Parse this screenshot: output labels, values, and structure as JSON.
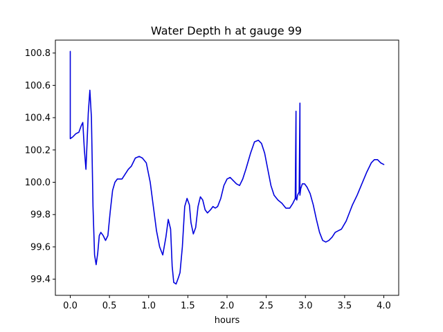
{
  "chart_data": {
    "type": "line",
    "title": "Water Depth h at gauge 99",
    "xlabel": "hours",
    "ylabel": "",
    "xlim": [
      -0.19,
      4.19
    ],
    "ylim": [
      99.3,
      100.88
    ],
    "xticks": [
      0.0,
      0.5,
      1.0,
      1.5,
      2.0,
      2.5,
      3.0,
      3.5,
      4.0
    ],
    "xtick_labels": [
      "0.0",
      "0.5",
      "1.0",
      "1.5",
      "2.0",
      "2.5",
      "3.0",
      "3.5",
      "4.0"
    ],
    "yticks": [
      99.4,
      99.6,
      99.8,
      100.0,
      100.2,
      100.4,
      100.6,
      100.8
    ],
    "ytick_labels": [
      "99.4",
      "99.6",
      "99.8",
      "100.0",
      "100.2",
      "100.4",
      "100.6",
      "100.8"
    ],
    "grid": false,
    "series": [
      {
        "color": "#0000dd",
        "x": [
          0.0,
          0.0,
          0.0,
          0.03,
          0.07,
          0.11,
          0.14,
          0.16,
          0.18,
          0.2,
          0.23,
          0.25,
          0.27,
          0.29,
          0.31,
          0.33,
          0.35,
          0.37,
          0.39,
          0.42,
          0.45,
          0.48,
          0.51,
          0.54,
          0.57,
          0.6,
          0.63,
          0.66,
          0.7,
          0.74,
          0.78,
          0.83,
          0.88,
          0.92,
          0.97,
          1.02,
          1.06,
          1.1,
          1.14,
          1.18,
          1.22,
          1.25,
          1.28,
          1.3,
          1.32,
          1.35,
          1.38,
          1.4,
          1.43,
          1.46,
          1.49,
          1.52,
          1.54,
          1.57,
          1.6,
          1.63,
          1.66,
          1.69,
          1.72,
          1.75,
          1.79,
          1.82,
          1.85,
          1.88,
          1.92,
          1.96,
          2.0,
          2.04,
          2.08,
          2.12,
          2.16,
          2.2,
          2.24,
          2.3,
          2.35,
          2.4,
          2.44,
          2.48,
          2.52,
          2.56,
          2.6,
          2.65,
          2.7,
          2.75,
          2.8,
          2.84,
          2.87,
          2.88,
          2.88,
          2.89,
          2.9,
          2.92,
          2.93,
          2.93,
          2.94,
          2.96,
          2.99,
          3.02,
          3.06,
          3.1,
          3.14,
          3.18,
          3.22,
          3.26,
          3.3,
          3.34,
          3.38,
          3.42,
          3.46,
          3.52,
          3.56,
          3.6,
          3.66,
          3.72,
          3.78,
          3.84,
          3.88,
          3.92,
          3.96,
          4.0
        ],
        "y": [
          100.27,
          100.81,
          100.27,
          100.28,
          100.3,
          100.31,
          100.35,
          100.37,
          100.2,
          100.08,
          100.43,
          100.57,
          100.4,
          99.85,
          99.55,
          99.49,
          99.56,
          99.67,
          99.69,
          99.67,
          99.64,
          99.67,
          99.82,
          99.95,
          100.0,
          100.02,
          100.02,
          100.02,
          100.05,
          100.08,
          100.1,
          100.15,
          100.16,
          100.15,
          100.12,
          100.0,
          99.85,
          99.7,
          99.6,
          99.55,
          99.66,
          99.77,
          99.71,
          99.48,
          99.38,
          99.37,
          99.41,
          99.44,
          99.6,
          99.85,
          99.9,
          99.86,
          99.75,
          99.68,
          99.72,
          99.85,
          99.91,
          99.89,
          99.83,
          99.81,
          99.83,
          99.85,
          99.84,
          99.85,
          99.9,
          99.98,
          100.02,
          100.03,
          100.01,
          99.99,
          99.98,
          100.02,
          100.08,
          100.18,
          100.25,
          100.26,
          100.24,
          100.18,
          100.08,
          99.98,
          99.92,
          99.89,
          99.87,
          99.84,
          99.84,
          99.87,
          99.9,
          100.44,
          99.9,
          99.89,
          99.92,
          99.94,
          100.49,
          99.92,
          99.96,
          99.99,
          99.99,
          99.97,
          99.93,
          99.86,
          99.77,
          99.69,
          99.64,
          99.63,
          99.64,
          99.66,
          99.69,
          99.7,
          99.71,
          99.76,
          99.81,
          99.86,
          99.92,
          99.99,
          100.06,
          100.12,
          100.14,
          100.14,
          100.12,
          100.11
        ]
      }
    ]
  }
}
